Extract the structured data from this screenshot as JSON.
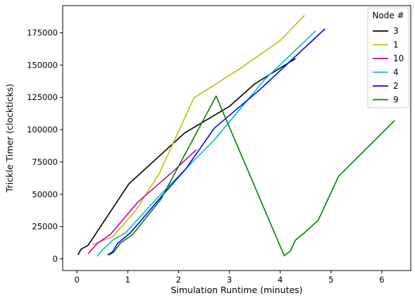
{
  "chart_data": {
    "type": "line",
    "title": "",
    "xlabel": "Simulation Runtime (minutes)",
    "ylabel": "Trickle Timer (clockticks)",
    "xlim": [
      -0.28,
      6.57
    ],
    "ylim": [
      -9000,
      196000
    ],
    "xticks": [
      0,
      1,
      2,
      3,
      4,
      5,
      6
    ],
    "yticks": [
      0,
      25000,
      50000,
      75000,
      100000,
      125000,
      150000,
      175000
    ],
    "grid": false,
    "legend": {
      "title": "Node #",
      "placement": "top-right"
    },
    "series": [
      {
        "name": "3",
        "color": "#000000",
        "x": [
          0.02,
          0.08,
          0.22,
          1.02,
          2.12,
          3.0,
          3.5,
          4.3
        ],
        "y": [
          3000,
          7500,
          10500,
          58000,
          97500,
          118000,
          135500,
          155000
        ]
      },
      {
        "name": "1",
        "color": "#bfbf00",
        "x": [
          0.3,
          0.7,
          1.15,
          1.62,
          2.3,
          3.2,
          4.0,
          4.48
        ],
        "y": [
          11000,
          17000,
          37000,
          66000,
          124500,
          147000,
          169000,
          188500
        ]
      },
      {
        "name": "10",
        "color": "#bf00bf",
        "x": [
          0.22,
          0.4,
          0.66,
          1.2,
          1.55,
          1.9,
          2.35
        ],
        "y": [
          4000,
          12000,
          19000,
          44000,
          56000,
          68000,
          84500
        ]
      },
      {
        "name": "4",
        "color": "#00bfbf",
        "x": [
          0.4,
          0.5,
          0.72,
          0.95,
          1.6,
          2.0,
          2.7,
          3.7,
          4.7
        ],
        "y": [
          2000,
          7000,
          15000,
          20000,
          48000,
          64000,
          92000,
          139000,
          176500
        ]
      },
      {
        "name": "2",
        "color": "#0000ff",
        "x": [
          0.6,
          0.7,
          0.8,
          1.05,
          1.7,
          2.15,
          2.7,
          3.6,
          4.88
        ],
        "y": [
          3000,
          5500,
          12000,
          20000,
          50000,
          70000,
          101000,
          131000,
          178000
        ]
      },
      {
        "name": "9",
        "color": "#008000",
        "x": [
          0.63,
          0.72,
          0.85,
          1.1,
          1.65,
          2.74,
          4.08,
          4.2,
          4.3,
          4.5,
          4.75,
          5.15,
          6.25
        ],
        "y": [
          3000,
          5000,
          12000,
          19000,
          46000,
          126000,
          2500,
          6000,
          14500,
          21000,
          30000,
          64000,
          107000
        ]
      }
    ]
  }
}
